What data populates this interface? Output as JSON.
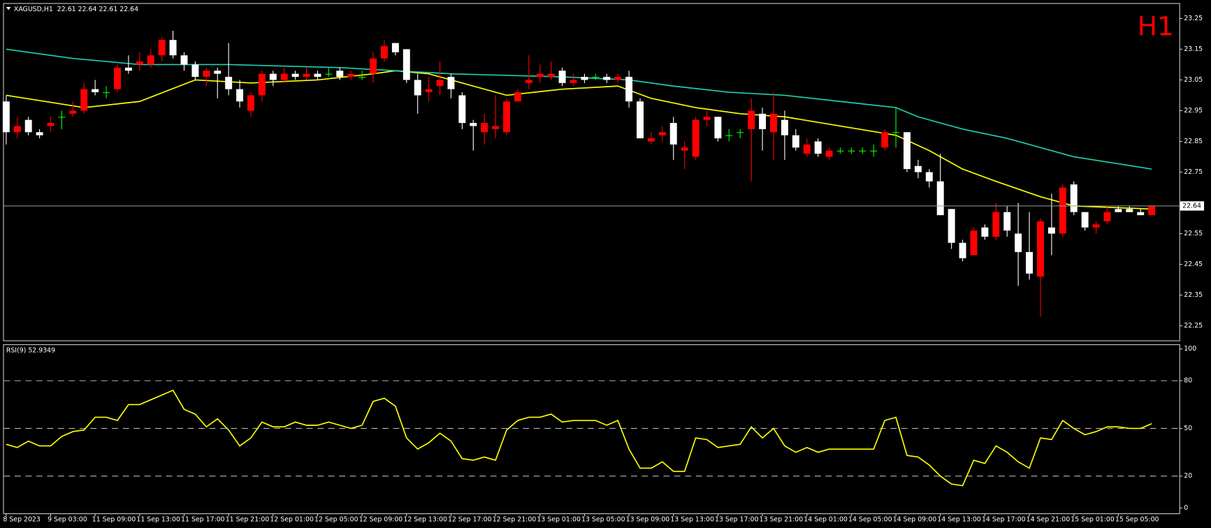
{
  "chart_data": [
    {
      "type": "candlestick",
      "title": "XAGUSD,H1  22.61 22.64 22.61 22.64",
      "timeframe_label": "H1",
      "categories": [
        "8 Sep 2023",
        null,
        null,
        null,
        "9 Sep 03:00",
        null,
        null,
        null,
        "11 Sep 09:00",
        null,
        null,
        null,
        "11 Sep 13:00",
        null,
        null,
        null,
        "11 Sep 17:00",
        null,
        null,
        null,
        "11 Sep 21:00",
        null,
        null,
        null,
        "12 Sep 01:00",
        null,
        null,
        null,
        "12 Sep 05:00",
        null,
        null,
        null,
        "12 Sep 09:00",
        null,
        null,
        null,
        "12 Sep 13:00",
        null,
        null,
        null,
        "12 Sep 17:00",
        null,
        null,
        null,
        "12 Sep 21:00",
        null,
        null,
        null,
        "13 Sep 01:00",
        null,
        null,
        null,
        "13 Sep 05:00",
        null,
        null,
        null,
        "13 Sep 09:00",
        null,
        null,
        null,
        "13 Sep 13:00",
        null,
        null,
        null,
        "13 Sep 17:00",
        null,
        null,
        null,
        "13 Sep 21:00",
        null,
        null,
        null,
        "14 Sep 01:00",
        null,
        null,
        null,
        "14 Sep 05:00",
        null,
        null,
        null,
        "14 Sep 09:00",
        null,
        null,
        null,
        "14 Sep 13:00",
        null,
        null,
        null,
        "14 Sep 17:00",
        null,
        null,
        null,
        "14 Sep 21:00",
        null,
        null,
        null,
        "15 Sep 01:00",
        null,
        null,
        null,
        "15 Sep 05:00",
        null,
        null,
        null
      ],
      "open": [
        22.98,
        22.88,
        22.92,
        22.88,
        22.9,
        22.93,
        22.94,
        22.95,
        23.02,
        23.01,
        23.02,
        23.09,
        23.1,
        23.1,
        23.13,
        23.18,
        23.13,
        23.1,
        23.06,
        23.08,
        23.06,
        23.02,
        22.95,
        23.0,
        23.07,
        23.05,
        23.07,
        23.06,
        23.07,
        23.07,
        23.08,
        23.06,
        23.06,
        23.07,
        23.12,
        23.17,
        23.15,
        23.05,
        23.01,
        23.03,
        23.06,
        23.0,
        22.91,
        22.88,
        22.89,
        22.88,
        22.98,
        23.04,
        23.06,
        23.06,
        23.08,
        23.04,
        23.06,
        23.06,
        23.06,
        23.05,
        23.06,
        22.98,
        22.85,
        22.87,
        22.91,
        22.82,
        22.8,
        22.92,
        22.93,
        22.87,
        22.88,
        22.89,
        22.94,
        22.88,
        22.92,
        22.87,
        22.81,
        22.85,
        22.8,
        22.82,
        22.82,
        22.82,
        22.82,
        22.83,
        22.88,
        22.88,
        22.77,
        22.75,
        22.72,
        22.63,
        22.52,
        22.48,
        22.57,
        22.54,
        22.62,
        22.55,
        22.49,
        22.41,
        22.57,
        22.55,
        22.71,
        22.62,
        22.57,
        22.59,
        22.63,
        22.63,
        22.62,
        22.61
      ],
      "high": [
        23.0,
        22.93,
        22.93,
        22.89,
        22.93,
        22.95,
        22.98,
        23.04,
        23.05,
        23.03,
        23.1,
        23.13,
        23.14,
        23.15,
        23.19,
        23.21,
        23.14,
        23.11,
        23.09,
        23.09,
        23.17,
        23.05,
        23.01,
        23.08,
        23.08,
        23.09,
        23.08,
        23.09,
        23.08,
        23.09,
        23.09,
        23.08,
        23.08,
        23.14,
        23.18,
        23.17,
        23.15,
        23.07,
        23.06,
        23.11,
        23.07,
        23.01,
        22.92,
        22.94,
        23.0,
        22.99,
        23.02,
        23.13,
        23.1,
        23.11,
        23.09,
        23.07,
        23.07,
        23.07,
        23.07,
        23.07,
        23.08,
        22.99,
        22.88,
        22.9,
        22.93,
        22.85,
        22.93,
        22.95,
        22.93,
        22.89,
        22.89,
        22.99,
        22.96,
        23.01,
        22.95,
        22.89,
        22.86,
        22.86,
        22.83,
        22.83,
        22.83,
        22.83,
        22.84,
        22.89,
        22.96,
        22.88,
        22.79,
        22.76,
        22.81,
        22.63,
        22.53,
        22.57,
        22.58,
        22.65,
        22.64,
        22.65,
        22.62,
        22.6,
        22.68,
        22.71,
        22.72,
        22.62,
        22.59,
        22.64,
        22.64,
        22.64,
        22.63,
        22.64
      ],
      "low": [
        22.84,
        22.86,
        22.87,
        22.86,
        22.88,
        22.89,
        22.93,
        22.94,
        23.0,
        22.99,
        23.01,
        23.07,
        23.08,
        23.09,
        23.11,
        23.12,
        23.08,
        23.05,
        23.03,
        22.99,
        23.0,
        22.96,
        22.93,
        22.98,
        23.03,
        23.04,
        23.05,
        23.05,
        23.05,
        23.06,
        23.05,
        23.05,
        23.05,
        23.04,
        23.11,
        23.13,
        23.04,
        22.94,
        22.98,
        23.0,
        22.99,
        22.89,
        22.82,
        22.84,
        22.86,
        22.87,
        22.99,
        23.02,
        23.04,
        23.05,
        23.03,
        23.03,
        23.04,
        23.05,
        23.04,
        23.04,
        22.96,
        22.86,
        22.84,
        22.85,
        22.79,
        22.76,
        22.79,
        22.9,
        22.85,
        22.85,
        22.86,
        22.72,
        22.82,
        22.79,
        22.79,
        22.82,
        22.8,
        22.8,
        22.79,
        22.81,
        22.81,
        22.81,
        22.8,
        22.82,
        22.83,
        22.75,
        22.73,
        22.7,
        22.61,
        22.5,
        22.46,
        22.48,
        22.53,
        22.53,
        22.54,
        22.38,
        22.4,
        22.28,
        22.48,
        22.54,
        22.61,
        22.56,
        22.55,
        22.58,
        22.62,
        22.62,
        22.61,
        22.61
      ],
      "close": [
        22.88,
        22.9,
        22.88,
        22.87,
        22.91,
        22.93,
        22.95,
        23.02,
        23.01,
        23.01,
        23.09,
        23.08,
        23.11,
        23.13,
        23.18,
        23.13,
        23.1,
        23.06,
        23.08,
        23.07,
        23.02,
        22.98,
        23.0,
        23.07,
        23.05,
        23.07,
        23.06,
        23.07,
        23.06,
        23.07,
        23.06,
        23.07,
        23.06,
        23.12,
        23.16,
        23.14,
        23.05,
        23.0,
        23.02,
        23.05,
        23.02,
        22.91,
        22.9,
        22.91,
        22.9,
        22.98,
        23.01,
        23.05,
        23.07,
        23.07,
        23.04,
        23.05,
        23.05,
        23.06,
        23.05,
        23.06,
        22.98,
        22.86,
        22.86,
        22.88,
        22.84,
        22.83,
        22.92,
        22.93,
        22.86,
        22.87,
        22.88,
        22.95,
        22.89,
        22.94,
        22.87,
        22.83,
        22.84,
        22.81,
        22.82,
        22.82,
        22.82,
        22.82,
        22.82,
        22.88,
        22.88,
        22.76,
        22.75,
        22.72,
        22.61,
        22.52,
        22.47,
        22.56,
        22.54,
        22.62,
        22.56,
        22.49,
        22.42,
        22.59,
        22.55,
        22.7,
        22.62,
        22.57,
        22.58,
        22.62,
        22.62,
        22.62,
        22.61,
        22.64
      ],
      "up_color": "#ff0000",
      "down_color": "#ffffff",
      "doji_color": "#00ff00",
      "text_color": "#ffffff",
      "label_color": "#ff0000",
      "series": [
        {
          "color": "#ffff00",
          "x": [
            0,
            7,
            12,
            17,
            22,
            28,
            33,
            35,
            38,
            40,
            45,
            50,
            55,
            58,
            62,
            66,
            70,
            75,
            80,
            83,
            86,
            89,
            93,
            96,
            103
          ],
          "values": [
            23.0,
            22.96,
            22.98,
            23.05,
            23.04,
            23.05,
            23.07,
            23.08,
            23.07,
            23.05,
            23.0,
            23.02,
            23.03,
            22.99,
            22.96,
            22.94,
            22.93,
            22.9,
            22.87,
            22.82,
            22.76,
            22.72,
            22.67,
            22.64,
            22.63
          ]
        },
        {
          "color": "#20d0b0",
          "x": [
            0,
            6,
            12,
            20,
            30,
            40,
            50,
            56,
            60,
            65,
            70,
            75,
            80,
            82,
            86,
            90,
            96,
            103
          ],
          "values": [
            23.15,
            23.12,
            23.1,
            23.1,
            23.09,
            23.07,
            23.06,
            23.05,
            23.03,
            23.01,
            23.0,
            22.98,
            22.96,
            22.93,
            22.89,
            22.86,
            22.8,
            22.76
          ]
        }
      ],
      "last_price": 22.64,
      "ylim": [
        22.2,
        23.3
      ],
      "yticks": [
        23.25,
        23.15,
        23.05,
        22.95,
        22.85,
        22.75,
        22.55,
        22.45,
        22.35,
        22.25
      ]
    },
    {
      "type": "line",
      "title": "RSI(9) 52.9349",
      "color": "#ffff00",
      "values": [
        40,
        38,
        42,
        39,
        39,
        45,
        48,
        49,
        57,
        57,
        55,
        65,
        65,
        68,
        71,
        74,
        62,
        59,
        51,
        56,
        49,
        39,
        44,
        54,
        51,
        51,
        54,
        52,
        52,
        54,
        52,
        50,
        52,
        67,
        69,
        64,
        44,
        37,
        41,
        47,
        42,
        31,
        30,
        32,
        30,
        49,
        55,
        57,
        57,
        59,
        54,
        55,
        55,
        55,
        52,
        55,
        37,
        25,
        25,
        29,
        23,
        23,
        44,
        43,
        38,
        39,
        40,
        51,
        44,
        50,
        39,
        35,
        38,
        35,
        37,
        37,
        37,
        37,
        37,
        55,
        57,
        33,
        32,
        27,
        20,
        15,
        14,
        30,
        28,
        39,
        35,
        29,
        25,
        44,
        43,
        55,
        50,
        46,
        48,
        51,
        51,
        50,
        50,
        53
      ],
      "levels": [
        80,
        50,
        20
      ],
      "ylim": [
        0,
        100
      ],
      "yticks": [
        100,
        80,
        50,
        20,
        0
      ]
    }
  ]
}
